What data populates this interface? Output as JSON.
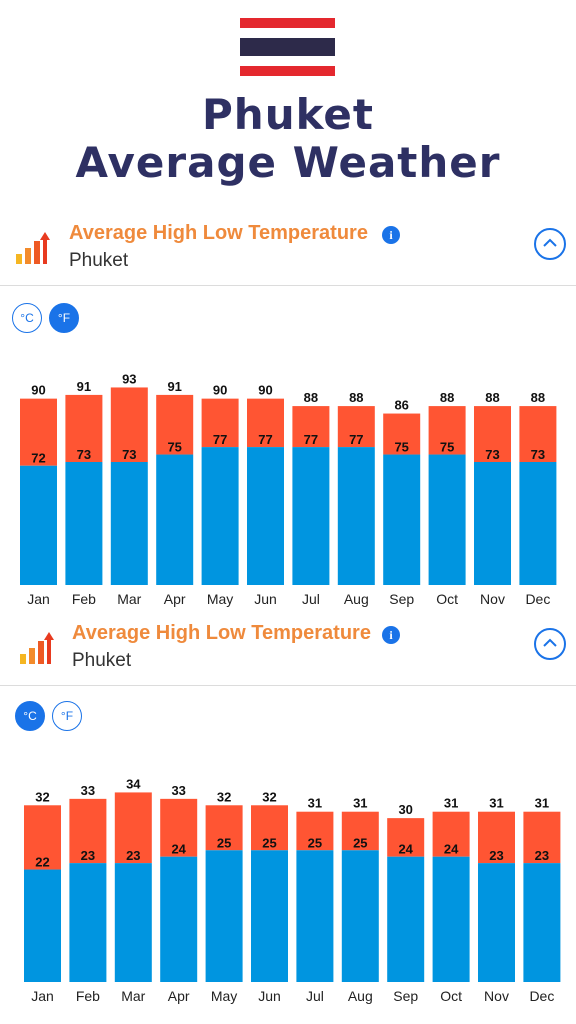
{
  "header": {
    "title_line1": "Phuket",
    "title_line2": "Average Weather",
    "flag_colors": [
      "#e4282e",
      "#ffffff",
      "#2d2a4a",
      "#ffffff",
      "#e4282e"
    ]
  },
  "panels": [
    {
      "title": "Average High Low Temperature",
      "subtitle": "Phuket",
      "unit_celsius_label": "°C",
      "unit_fahrenheit_label": "°F",
      "active_unit": "F",
      "collapse_icon": "chevron-up-icon",
      "info_icon": "info-icon"
    },
    {
      "title": "Average High Low Temperature",
      "subtitle": "Phuket",
      "unit_celsius_label": "°C",
      "unit_fahrenheit_label": "°F",
      "active_unit": "C",
      "collapse_icon": "chevron-up-icon",
      "info_icon": "info-icon"
    }
  ],
  "colors": {
    "high": "#ff5533",
    "low": "#0095e0",
    "accent": "#1a73e8",
    "title_orange": "#ef8a3c",
    "title_navy": "#2e3063"
  },
  "chart_data": [
    {
      "type": "bar",
      "categories": [
        "Jan",
        "Feb",
        "Mar",
        "Apr",
        "May",
        "Jun",
        "Jul",
        "Aug",
        "Sep",
        "Oct",
        "Nov",
        "Dec"
      ],
      "series": [
        {
          "values": [
            90,
            91,
            93,
            91,
            90,
            90,
            88,
            88,
            86,
            88,
            88,
            88
          ]
        },
        {
          "values": [
            72,
            73,
            73,
            75,
            77,
            77,
            77,
            77,
            75,
            75,
            73,
            73
          ]
        }
      ],
      "ylim": [
        40,
        95
      ]
    },
    {
      "type": "bar",
      "categories": [
        "Jan",
        "Feb",
        "Mar",
        "Apr",
        "May",
        "Jun",
        "Jul",
        "Aug",
        "Sep",
        "Oct",
        "Nov",
        "Dec"
      ],
      "series": [
        {
          "values": [
            32,
            33,
            34,
            33,
            32,
            32,
            31,
            31,
            30,
            31,
            31,
            31
          ]
        },
        {
          "values": [
            22,
            23,
            23,
            24,
            25,
            25,
            25,
            25,
            24,
            24,
            23,
            23
          ]
        }
      ],
      "ylim": [
        4.5,
        35
      ]
    }
  ]
}
